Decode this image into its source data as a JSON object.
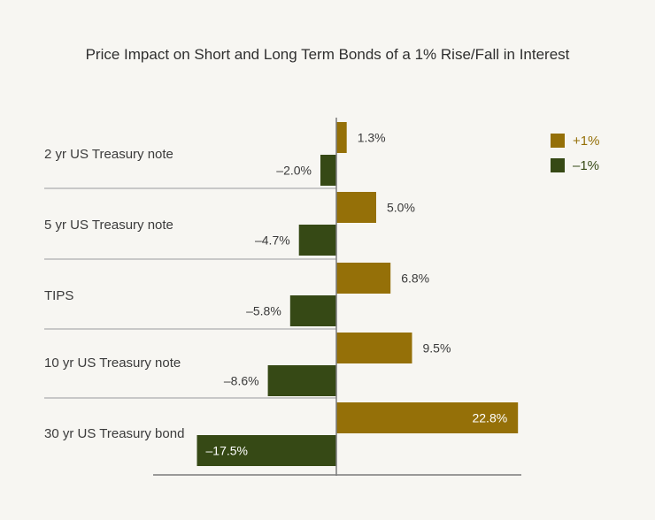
{
  "chart_data": {
    "type": "bar",
    "orientation": "horizontal",
    "title": "Price Impact on Short and Long Term Bonds of a 1% Rise/Fall in Interest",
    "categories": [
      "2 yr US Treasury note",
      "5 yr US Treasury note",
      "TIPS",
      "10 yr US Treasury note",
      "30 yr US Treasury bond"
    ],
    "series": [
      {
        "name": "+1%",
        "color": "#957008",
        "values": [
          1.3,
          5.0,
          6.8,
          9.5,
          22.8
        ],
        "labels": [
          "1.3%",
          "5.0%",
          "6.8%",
          "9.5%",
          "22.8%"
        ]
      },
      {
        "name": "–1%",
        "color": "#364915",
        "values": [
          -2.0,
          -4.7,
          -5.8,
          -8.6,
          -17.5
        ],
        "labels": [
          "–2.0%",
          "–4.7%",
          "–5.8%",
          "–8.6%",
          "–17.5%"
        ]
      }
    ],
    "legend_position": "top-right",
    "grid": false
  }
}
